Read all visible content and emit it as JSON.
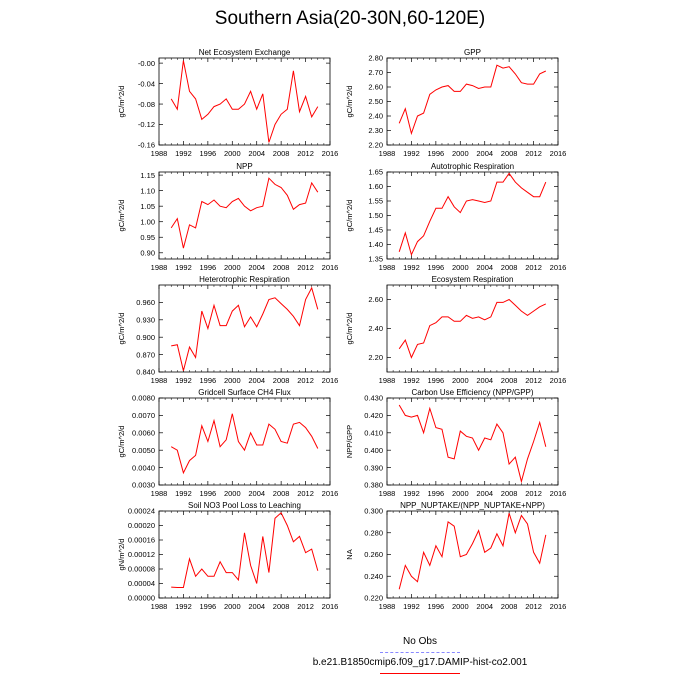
{
  "page": {
    "title": "Southern Asia(20-30N,60-120E)"
  },
  "legend": {
    "entries": [
      {
        "label": "No Obs",
        "color": "#8888ff",
        "dashed": true
      },
      {
        "label": "b.e21.B1850cmip6.f09_g17.DAMIP-hist-co2.001",
        "color": "#ff0000",
        "dashed": false
      }
    ]
  },
  "chart_data": [
    {
      "type": "line",
      "title": "Net Ecosystem Exchange",
      "ylabel": "gC/m^2/d",
      "xlabel": "",
      "xlim": [
        1988,
        2016
      ],
      "ylim": [
        -0.16,
        0.01
      ],
      "xticks": [
        1988,
        1992,
        1996,
        2000,
        2004,
        2008,
        2012,
        2016
      ],
      "yticks": [
        -0.16,
        -0.12,
        -0.08,
        -0.04,
        0.0
      ],
      "yticklabels": [
        "-0.16",
        "-0.12",
        "-0.08",
        "-0.04",
        "-0.00"
      ],
      "grid": false,
      "series": [
        {
          "color": "#ff0000",
          "x": [
            1990,
            1991,
            1992,
            1993,
            1994,
            1995,
            1996,
            1997,
            1998,
            1999,
            2000,
            2001,
            2002,
            2003,
            2004,
            2005,
            2006,
            2007,
            2008,
            2009,
            2010,
            2011,
            2012,
            2013,
            2014
          ],
          "y": [
            -0.07,
            -0.09,
            0.005,
            -0.055,
            -0.07,
            -0.11,
            -0.1,
            -0.085,
            -0.08,
            -0.07,
            -0.09,
            -0.09,
            -0.08,
            -0.055,
            -0.09,
            -0.06,
            -0.155,
            -0.12,
            -0.1,
            -0.09,
            -0.015,
            -0.095,
            -0.065,
            -0.105,
            -0.085
          ]
        }
      ]
    },
    {
      "type": "line",
      "title": "GPP",
      "ylabel": "gC/m^2/d",
      "xlabel": "",
      "xlim": [
        1988,
        2016
      ],
      "ylim": [
        2.2,
        2.8
      ],
      "xticks": [
        1988,
        1992,
        1996,
        2000,
        2004,
        2008,
        2012,
        2016
      ],
      "yticks": [
        2.2,
        2.3,
        2.4,
        2.5,
        2.6,
        2.7,
        2.8
      ],
      "yticklabels": [
        "2.20",
        "2.30",
        "2.40",
        "2.50",
        "2.60",
        "2.70",
        "2.80"
      ],
      "grid": false,
      "series": [
        {
          "color": "#ff0000",
          "x": [
            1990,
            1991,
            1992,
            1993,
            1994,
            1995,
            1996,
            1997,
            1998,
            1999,
            2000,
            2001,
            2002,
            2003,
            2004,
            2005,
            2006,
            2007,
            2008,
            2009,
            2010,
            2011,
            2012,
            2013,
            2014
          ],
          "y": [
            2.35,
            2.45,
            2.28,
            2.4,
            2.42,
            2.55,
            2.58,
            2.6,
            2.61,
            2.57,
            2.57,
            2.62,
            2.61,
            2.59,
            2.6,
            2.6,
            2.75,
            2.73,
            2.74,
            2.69,
            2.63,
            2.62,
            2.62,
            2.69,
            2.71
          ]
        }
      ]
    },
    {
      "type": "line",
      "title": "NPP",
      "ylabel": "gC/m^2/d",
      "xlabel": "",
      "xlim": [
        1988,
        2016
      ],
      "ylim": [
        0.88,
        1.16
      ],
      "xticks": [
        1988,
        1992,
        1996,
        2000,
        2004,
        2008,
        2012,
        2016
      ],
      "yticks": [
        0.9,
        0.95,
        1.0,
        1.05,
        1.1,
        1.15
      ],
      "yticklabels": [
        "0.90",
        "0.95",
        "1.00",
        "1.05",
        "1.10",
        "1.15"
      ],
      "grid": false,
      "series": [
        {
          "color": "#ff0000",
          "x": [
            1990,
            1991,
            1992,
            1993,
            1994,
            1995,
            1996,
            1997,
            1998,
            1999,
            2000,
            2001,
            2002,
            2003,
            2004,
            2005,
            2006,
            2007,
            2008,
            2009,
            2010,
            2011,
            2012,
            2013,
            2014
          ],
          "y": [
            0.98,
            1.01,
            0.915,
            0.99,
            0.98,
            1.065,
            1.055,
            1.07,
            1.05,
            1.045,
            1.065,
            1.075,
            1.05,
            1.035,
            1.045,
            1.05,
            1.14,
            1.12,
            1.11,
            1.085,
            1.04,
            1.055,
            1.06,
            1.125,
            1.095
          ]
        }
      ]
    },
    {
      "type": "line",
      "title": "Autotrophic Respiration",
      "ylabel": "gC/m^2/d",
      "xlabel": "",
      "xlim": [
        1988,
        2016
      ],
      "ylim": [
        1.35,
        1.65
      ],
      "xticks": [
        1988,
        1992,
        1996,
        2000,
        2004,
        2008,
        2012,
        2016
      ],
      "yticks": [
        1.35,
        1.4,
        1.45,
        1.5,
        1.55,
        1.6,
        1.65
      ],
      "yticklabels": [
        "1.35",
        "1.40",
        "1.45",
        "1.50",
        "1.55",
        "1.60",
        "1.65"
      ],
      "grid": false,
      "series": [
        {
          "color": "#ff0000",
          "x": [
            1990,
            1991,
            1992,
            1993,
            1994,
            1995,
            1996,
            1997,
            1998,
            1999,
            2000,
            2001,
            2002,
            2003,
            2004,
            2005,
            2006,
            2007,
            2008,
            2009,
            2010,
            2011,
            2012,
            2013,
            2014
          ],
          "y": [
            1.375,
            1.44,
            1.365,
            1.41,
            1.43,
            1.48,
            1.525,
            1.525,
            1.565,
            1.53,
            1.51,
            1.55,
            1.555,
            1.55,
            1.545,
            1.55,
            1.615,
            1.615,
            1.645,
            1.615,
            1.595,
            1.58,
            1.565,
            1.565,
            1.615
          ]
        }
      ]
    },
    {
      "type": "line",
      "title": "Heterotrophic Respiration",
      "ylabel": "gC/m^2/d",
      "xlabel": "",
      "xlim": [
        1988,
        2016
      ],
      "ylim": [
        0.84,
        0.99
      ],
      "xticks": [
        1988,
        1992,
        1996,
        2000,
        2004,
        2008,
        2012,
        2016
      ],
      "yticks": [
        0.84,
        0.87,
        0.9,
        0.93,
        0.96
      ],
      "yticklabels": [
        "0.840",
        "0.870",
        "0.900",
        "0.930",
        "0.960"
      ],
      "grid": false,
      "series": [
        {
          "color": "#ff0000",
          "x": [
            1990,
            1991,
            1992,
            1993,
            1994,
            1995,
            1996,
            1997,
            1998,
            1999,
            2000,
            2001,
            2002,
            2003,
            2004,
            2005,
            2006,
            2007,
            2008,
            2009,
            2010,
            2011,
            2012,
            2013,
            2014
          ],
          "y": [
            0.885,
            0.887,
            0.842,
            0.883,
            0.865,
            0.945,
            0.915,
            0.955,
            0.92,
            0.92,
            0.945,
            0.955,
            0.918,
            0.935,
            0.918,
            0.94,
            0.965,
            0.968,
            0.958,
            0.948,
            0.936,
            0.92,
            0.965,
            0.985,
            0.948
          ]
        }
      ]
    },
    {
      "type": "line",
      "title": "Ecosystem Respiration",
      "ylabel": "gC/m^2/d",
      "xlabel": "",
      "xlim": [
        1988,
        2016
      ],
      "ylim": [
        2.1,
        2.7
      ],
      "xticks": [
        1988,
        1992,
        1996,
        2000,
        2004,
        2008,
        2012,
        2016
      ],
      "yticks": [
        2.2,
        2.4,
        2.6
      ],
      "yticklabels": [
        "2.20",
        "2.40",
        "2.60"
      ],
      "grid": false,
      "series": [
        {
          "color": "#ff0000",
          "x": [
            1990,
            1991,
            1992,
            1993,
            1994,
            1995,
            1996,
            1997,
            1998,
            1999,
            2000,
            2001,
            2002,
            2003,
            2004,
            2005,
            2006,
            2007,
            2008,
            2009,
            2010,
            2011,
            2012,
            2013,
            2014
          ],
          "y": [
            2.26,
            2.32,
            2.2,
            2.29,
            2.3,
            2.42,
            2.44,
            2.48,
            2.48,
            2.45,
            2.45,
            2.49,
            2.47,
            2.48,
            2.46,
            2.48,
            2.58,
            2.58,
            2.6,
            2.56,
            2.52,
            2.49,
            2.52,
            2.55,
            2.57
          ]
        }
      ]
    },
    {
      "type": "line",
      "title": "Gridcell Surface CH4 Flux",
      "ylabel": "gC/m^2/d",
      "xlabel": "",
      "xlim": [
        1988,
        2016
      ],
      "ylim": [
        0.003,
        0.008
      ],
      "xticks": [
        1988,
        1992,
        1996,
        2000,
        2004,
        2008,
        2012,
        2016
      ],
      "yticks": [
        0.003,
        0.004,
        0.005,
        0.006,
        0.007,
        0.008
      ],
      "yticklabels": [
        "0.0030",
        "0.0040",
        "0.0050",
        "0.0060",
        "0.0070",
        "0.0080"
      ],
      "grid": false,
      "series": [
        {
          "color": "#ff0000",
          "x": [
            1990,
            1991,
            1992,
            1993,
            1994,
            1995,
            1996,
            1997,
            1998,
            1999,
            2000,
            2001,
            2002,
            2003,
            2004,
            2005,
            2006,
            2007,
            2008,
            2009,
            2010,
            2011,
            2012,
            2013,
            2014
          ],
          "y": [
            0.0052,
            0.005,
            0.0037,
            0.0044,
            0.0047,
            0.0064,
            0.0055,
            0.0067,
            0.0052,
            0.0056,
            0.0071,
            0.0055,
            0.005,
            0.006,
            0.0053,
            0.0053,
            0.0065,
            0.0062,
            0.0055,
            0.0054,
            0.0065,
            0.0066,
            0.0063,
            0.0058,
            0.0051
          ]
        }
      ]
    },
    {
      "type": "line",
      "title": "Carbon Use Efficiency (NPP/GPP)",
      "ylabel": "NPP/GPP",
      "xlabel": "",
      "xlim": [
        1988,
        2016
      ],
      "ylim": [
        0.38,
        0.43
      ],
      "xticks": [
        1988,
        1992,
        1996,
        2000,
        2004,
        2008,
        2012,
        2016
      ],
      "yticks": [
        0.38,
        0.39,
        0.4,
        0.41,
        0.42,
        0.43
      ],
      "yticklabels": [
        "0.380",
        "0.390",
        "0.400",
        "0.410",
        "0.420",
        "0.430"
      ],
      "grid": false,
      "series": [
        {
          "color": "#ff0000",
          "x": [
            1990,
            1991,
            1992,
            1993,
            1994,
            1995,
            1996,
            1997,
            1998,
            1999,
            2000,
            2001,
            2002,
            2003,
            2004,
            2005,
            2006,
            2007,
            2008,
            2009,
            2010,
            2011,
            2012,
            2013,
            2014
          ],
          "y": [
            0.426,
            0.42,
            0.419,
            0.42,
            0.41,
            0.424,
            0.413,
            0.412,
            0.396,
            0.395,
            0.411,
            0.408,
            0.407,
            0.4,
            0.407,
            0.406,
            0.415,
            0.41,
            0.392,
            0.396,
            0.382,
            0.395,
            0.405,
            0.416,
            0.402
          ]
        }
      ]
    },
    {
      "type": "line",
      "title": "Soil NO3 Pool Loss to Leaching",
      "ylabel": "gN/m^2/d",
      "xlabel": "",
      "xlim": [
        1988,
        2016
      ],
      "ylim": [
        0,
        0.00024
      ],
      "xticks": [
        1988,
        1992,
        1996,
        2000,
        2004,
        2008,
        2012,
        2016
      ],
      "yticks": [
        0,
        4e-05,
        8e-05,
        0.00012,
        0.00016,
        0.0002,
        0.00024
      ],
      "yticklabels": [
        "0.00000",
        "0.00004",
        "0.00008",
        "0.00012",
        "0.00016",
        "0.00020",
        "0.00024"
      ],
      "grid": false,
      "series": [
        {
          "color": "#ff0000",
          "x": [
            1990,
            1991,
            1992,
            1993,
            1994,
            1995,
            1996,
            1997,
            1998,
            1999,
            2000,
            2001,
            2002,
            2003,
            2004,
            2005,
            2006,
            2007,
            2008,
            2009,
            2010,
            2011,
            2012,
            2013,
            2014
          ],
          "y": [
            3e-05,
            2.9e-05,
            2.9e-05,
            0.000108,
            6e-05,
            8e-05,
            6e-05,
            6e-05,
            0.0001,
            7e-05,
            7e-05,
            5e-05,
            0.00018,
            9e-05,
            4e-05,
            0.00017,
            7e-05,
            0.00022,
            0.000235,
            0.0002,
            0.000155,
            0.00017,
            0.000125,
            0.000135,
            7.5e-05
          ]
        }
      ]
    },
    {
      "type": "line",
      "title": "NPP_NUPTAKE/(NPP_NUPTAKE+NPP)",
      "ylabel": "NA",
      "xlabel": "",
      "xlim": [
        1988,
        2016
      ],
      "ylim": [
        0.22,
        0.3
      ],
      "xticks": [
        1988,
        1992,
        1996,
        2000,
        2004,
        2008,
        2012,
        2016
      ],
      "yticks": [
        0.22,
        0.24,
        0.26,
        0.28,
        0.3
      ],
      "yticklabels": [
        "0.220",
        "0.240",
        "0.260",
        "0.280",
        "0.300"
      ],
      "grid": false,
      "series": [
        {
          "color": "#ff0000",
          "x": [
            1990,
            1991,
            1992,
            1993,
            1994,
            1995,
            1996,
            1997,
            1998,
            1999,
            2000,
            2001,
            2002,
            2003,
            2004,
            2005,
            2006,
            2007,
            2008,
            2009,
            2010,
            2011,
            2012,
            2013,
            2014
          ],
          "y": [
            0.228,
            0.25,
            0.24,
            0.235,
            0.262,
            0.25,
            0.268,
            0.258,
            0.29,
            0.286,
            0.258,
            0.26,
            0.27,
            0.282,
            0.262,
            0.266,
            0.279,
            0.268,
            0.298,
            0.28,
            0.296,
            0.288,
            0.262,
            0.252,
            0.278
          ]
        }
      ]
    }
  ]
}
